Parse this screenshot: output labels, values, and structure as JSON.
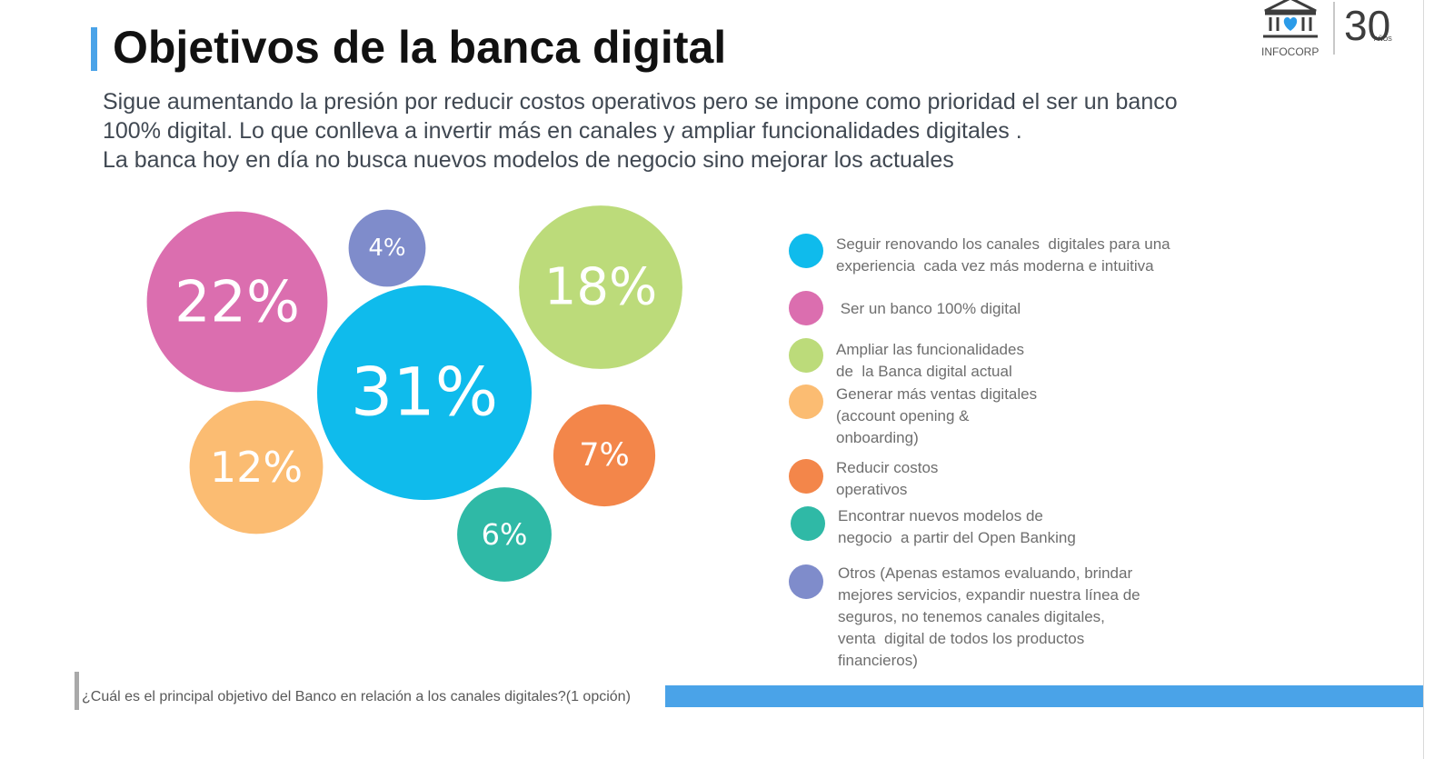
{
  "header": {
    "title": "Objetivos de la banca digital",
    "intro_lines": [
      "Sigue aumentando la presión por reducir costos operativos pero se impone como prioridad el ser un banco",
      "100% digital. Lo que conlleva a invertir más en canales y ampliar funcionalidades digitales .",
      "La banca hoy en día no busca nuevos modelos de negocio sino mejorar los actuales"
    ]
  },
  "logo": {
    "text": "INFOCORP",
    "anniversary": "30",
    "anniversary_small": "AÑOS",
    "icon": "bank-building-heart-icon"
  },
  "chart_data": {
    "type": "bubble",
    "unit": "%",
    "items": [
      {
        "label": "Seguir renovando los canales  digitales para una experiencia  cada vez más moderna e intuitiva",
        "value": 31,
        "display": "31%",
        "color": "#0fbbec"
      },
      {
        "label": "Ser un banco 100% digital",
        "value": 22,
        "display": "22%",
        "color": "#db6eaf"
      },
      {
        "label": "Ampliar las funcionalidades de  la Banca digital actual",
        "value": 18,
        "display": "18%",
        "color": "#bcdb7a"
      },
      {
        "label": "Generar más ventas digitales (account opening & onboarding)",
        "value": 12,
        "display": "12%",
        "color": "#fbbc72"
      },
      {
        "label": "Reducir costos operativos",
        "value": 7,
        "display": "7%",
        "color": "#f3864a"
      },
      {
        "label": "Encontrar nuevos modelos de negocio  a partir del Open Banking",
        "value": 6,
        "display": "6%",
        "color": "#2fb9a6"
      },
      {
        "label": "Otros (Apenas estamos evaluando, brindar mejores servicios, expandir nuestra línea de seguros, no tenemos canales digitales, venta  digital de todos los productos financieros)",
        "value": 4,
        "display": "4%",
        "color": "#7f8ccb"
      }
    ]
  },
  "legend_lines": [
    [
      "Seguir renovando los canales  digitales para una",
      "experiencia  cada vez más moderna e intuitiva"
    ],
    [
      " Ser un banco 100% digital"
    ],
    [
      "Ampliar las funcionalidades",
      "de  la Banca digital actual"
    ],
    [
      "Generar más ventas digitales",
      "(account opening &",
      "onboarding)"
    ],
    [
      "Reducir costos",
      "operativos"
    ],
    [
      "Encontrar nuevos modelos de",
      "negocio  a partir del Open Banking"
    ],
    [
      "Otros (Apenas estamos evaluando, brindar",
      "mejores servicios, expandir nuestra línea de",
      "seguros, no tenemos canales digitales,",
      "venta  digital de todos los productos",
      "financieros)"
    ]
  ],
  "footer": {
    "question": "¿Cuál es el principal objetivo del Banco en relación a los canales digitales?(1 opción)"
  }
}
